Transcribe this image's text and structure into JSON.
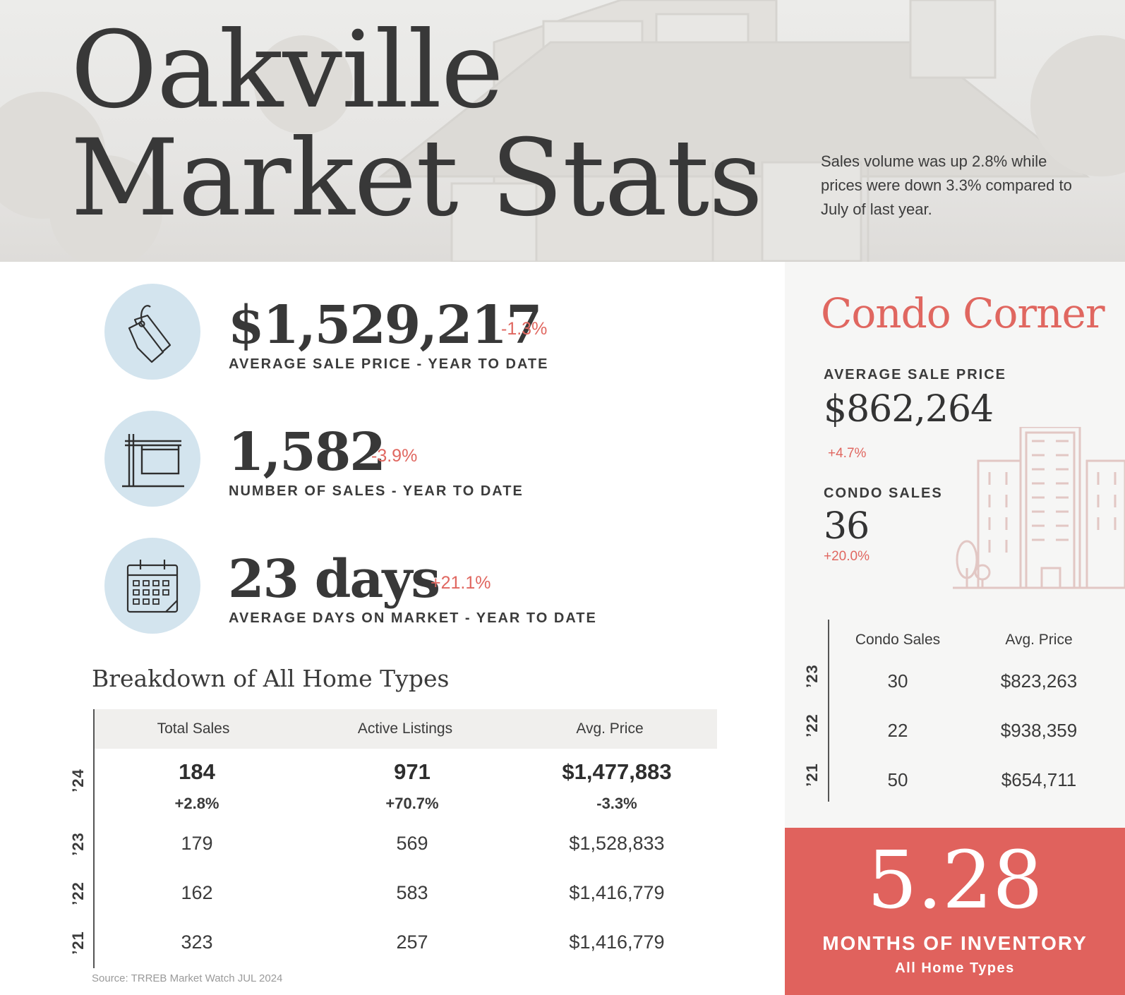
{
  "hero": {
    "title_line1": "Oakville",
    "title_line2": "Market Stats",
    "summary": "Sales volume was up 2.8% while prices were down 3.3% compared to July of last year."
  },
  "stats": [
    {
      "icon": "price-tag-icon",
      "value": "$1,529,217",
      "change": "-1.3%",
      "label": "AVERAGE SALE PRICE - YEAR TO DATE"
    },
    {
      "icon": "sale-sign-icon",
      "value": "1,582",
      "change": "-3.9%",
      "label": "NUMBER OF SALES - YEAR TO DATE"
    },
    {
      "icon": "calendar-icon",
      "value": "23 days",
      "change": "+21.1%",
      "label": "AVERAGE DAYS ON MARKET - YEAR TO DATE"
    }
  ],
  "breakdown": {
    "title": "Breakdown of All Home Types",
    "headers": [
      "Total Sales",
      "Active Listings",
      "Avg. Price"
    ],
    "current": {
      "year": "’24",
      "total_sales": "184",
      "total_sales_change": "+2.8%",
      "active_listings": "971",
      "active_listings_change": "+70.7%",
      "avg_price": "$1,477,883",
      "avg_price_change": "-3.3%"
    },
    "rows": [
      {
        "year": "’23",
        "total_sales": "179",
        "active_listings": "569",
        "avg_price": "$1,528,833"
      },
      {
        "year": "’22",
        "total_sales": "162",
        "active_listings": "583",
        "avg_price": "$1,416,779"
      },
      {
        "year": "’21",
        "total_sales": "323",
        "active_listings": "257",
        "avg_price": "$1,416,779"
      }
    ],
    "source": "Source: TRREB Market Watch JUL 2024"
  },
  "condo": {
    "title": "Condo Corner",
    "avg_price_label": "AVERAGE SALE PRICE",
    "avg_price": "$862,264",
    "avg_price_change": "+4.7%",
    "sales_label": "CONDO SALES",
    "sales": "36",
    "sales_change": "+20.0%",
    "headers": [
      "Condo Sales",
      "Avg. Price"
    ],
    "rows": [
      {
        "year": "’23",
        "sales": "30",
        "avg_price": "$823,263"
      },
      {
        "year": "’22",
        "sales": "22",
        "avg_price": "$938,359"
      },
      {
        "year": "’21",
        "sales": "50",
        "avg_price": "$654,711"
      }
    ]
  },
  "inventory": {
    "value": "5.28",
    "label": "MONTHS OF INVENTORY",
    "sublabel": "All Home Types"
  },
  "colors": {
    "accent": "#e0625d",
    "icon_circle": "#d3e4ee",
    "text": "#383838"
  }
}
